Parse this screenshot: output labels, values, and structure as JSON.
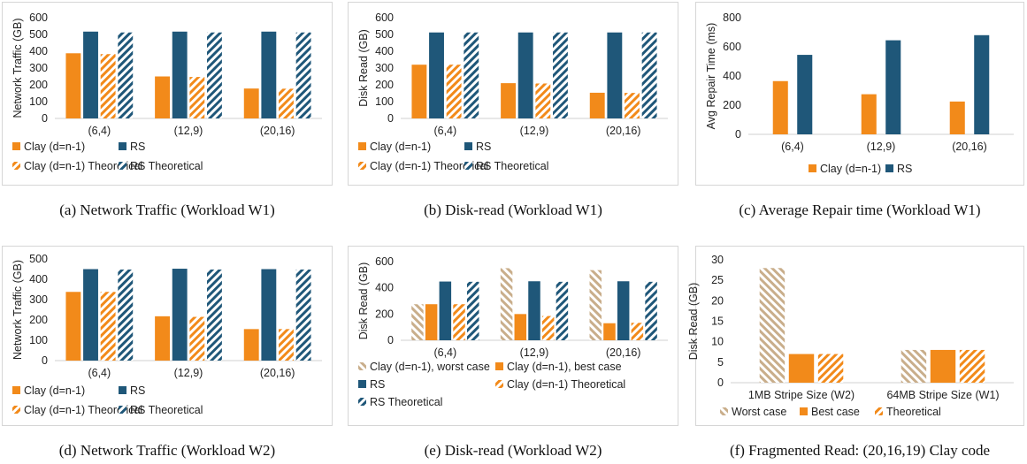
{
  "colors": {
    "clay": "#F28A1A",
    "rs": "#1F5779",
    "worst": "#C9AE8B",
    "axis": "#d0d0d0",
    "border": "#d6d6d6"
  },
  "panels": [
    {
      "caption": "(a)  Network Traffic (Workload W1)",
      "chart_data": {
        "type": "bar",
        "ylabel": "Network Traffic (GB)",
        "ylim": [
          0,
          600
        ],
        "yticks": [
          0,
          100,
          200,
          300,
          400,
          500,
          600
        ],
        "categories": [
          "(6,4)",
          "(12,9)",
          "(20,16)"
        ],
        "legend_columns": 2,
        "series": [
          {
            "name": "Clay (d=n-1)",
            "color": "clay",
            "pattern": "solid",
            "values": [
              388,
              250,
              178
            ]
          },
          {
            "name": "RS",
            "color": "rs",
            "pattern": "solid",
            "values": [
              517,
              517,
              517
            ]
          },
          {
            "name": "Clay (d=n-1) Theoretical",
            "color": "clay",
            "pattern": "hatch",
            "values": [
              383,
              247,
              177
            ]
          },
          {
            "name": "RS Theoretical",
            "color": "rs",
            "pattern": "hatch",
            "values": [
              512,
              512,
              512
            ]
          }
        ]
      }
    },
    {
      "caption": "(b)  Disk-read (Workload W1)",
      "chart_data": {
        "type": "bar",
        "ylabel": "Disk Read (GB)",
        "ylim": [
          0,
          600
        ],
        "yticks": [
          0,
          100,
          200,
          300,
          400,
          500,
          600
        ],
        "categories": [
          "(6,4)",
          "(12,9)",
          "(20,16)"
        ],
        "legend_columns": 2,
        "series": [
          {
            "name": "Clay (d=n-1)",
            "color": "clay",
            "pattern": "solid",
            "values": [
              320,
              210,
              153
            ]
          },
          {
            "name": "RS",
            "color": "rs",
            "pattern": "solid",
            "values": [
              512,
              512,
              512
            ]
          },
          {
            "name": "Clay (d=n-1) Theoretical",
            "color": "clay",
            "pattern": "hatch",
            "values": [
              320,
              208,
              152
            ]
          },
          {
            "name": "RS Theoretical",
            "color": "rs",
            "pattern": "hatch",
            "values": [
              512,
              512,
              512
            ]
          }
        ]
      }
    },
    {
      "caption": "(c)  Average Repair time (Workload W1)",
      "chart_data": {
        "type": "bar",
        "ylabel": "Avg Repair Time (ms)",
        "ylim": [
          0,
          800
        ],
        "yticks": [
          0,
          200,
          400,
          600,
          800
        ],
        "categories": [
          "(6,4)",
          "(12,9)",
          "(20,16)"
        ],
        "legend_columns": 2,
        "series": [
          {
            "name": "Clay (d=n-1)",
            "color": "clay",
            "pattern": "solid",
            "values": [
              365,
              275,
              225
            ]
          },
          {
            "name": "RS",
            "color": "rs",
            "pattern": "solid",
            "values": [
              545,
              645,
              680
            ]
          }
        ]
      }
    },
    {
      "caption": "(d)  Network Traffic (Workload W2)",
      "chart_data": {
        "type": "bar",
        "ylabel": "Network Traffic (GB)",
        "ylim": [
          0,
          500
        ],
        "yticks": [
          0,
          100,
          200,
          300,
          400,
          500
        ],
        "categories": [
          "(6,4)",
          "(12,9)",
          "(20,16)"
        ],
        "legend_columns": 2,
        "series": [
          {
            "name": "Clay (d=n-1)",
            "color": "clay",
            "pattern": "solid",
            "values": [
              338,
              218,
              155
            ]
          },
          {
            "name": "RS",
            "color": "rs",
            "pattern": "solid",
            "values": [
              450,
              452,
              450
            ]
          },
          {
            "name": "Clay (d=n-1) Theoretical",
            "color": "clay",
            "pattern": "hatch",
            "values": [
              338,
              215,
              155
            ]
          },
          {
            "name": "RS Theoretical",
            "color": "rs",
            "pattern": "hatch",
            "values": [
              448,
              448,
              448
            ]
          }
        ]
      }
    },
    {
      "caption": "(e)  Disk-read (Workload W2)",
      "chart_data": {
        "type": "bar",
        "ylabel": "Disk Read (GB)",
        "ylim": [
          0,
          600
        ],
        "yticks": [
          0,
          200,
          400,
          600
        ],
        "categories": [
          "(6,4)",
          "(12,9)",
          "(20,16)"
        ],
        "legend_columns": 2,
        "series": [
          {
            "name": "Clay (d=n-1), worst case",
            "color": "worst",
            "pattern": "dhatch",
            "values": [
              275,
              550,
              535
            ]
          },
          {
            "name": "Clay (d=n-1), best case",
            "color": "clay",
            "pattern": "solid",
            "values": [
              275,
              200,
              130
            ]
          },
          {
            "name": "RS",
            "color": "rs",
            "pattern": "solid",
            "values": [
              448,
              450,
              450
            ]
          },
          {
            "name": "Clay (d=n-1) Theoretical",
            "color": "clay",
            "pattern": "hatch",
            "values": [
              275,
              185,
              133
            ]
          },
          {
            "name": "RS Theoretical",
            "color": "rs",
            "pattern": "hatch",
            "values": [
              446,
              446,
              446
            ]
          }
        ]
      }
    },
    {
      "caption": "(f)  Fragmented Read: (20,16,19) Clay code",
      "chart_data": {
        "type": "bar",
        "ylabel": "Disk Read (GB)",
        "ylim": [
          0,
          30
        ],
        "yticks": [
          0,
          5,
          10,
          15,
          20,
          25,
          30
        ],
        "categories": [
          "1MB Stripe Size (W2)",
          "64MB Stripe Size (W1)"
        ],
        "legend_columns": 3,
        "series": [
          {
            "name": "Worst case",
            "color": "worst",
            "pattern": "dhatch",
            "values": [
              28,
              8
            ]
          },
          {
            "name": "Best case",
            "color": "clay",
            "pattern": "solid",
            "values": [
              7,
              8
            ]
          },
          {
            "name": "Theoretical",
            "color": "clay",
            "pattern": "hatch",
            "values": [
              7,
              8
            ]
          }
        ]
      }
    }
  ]
}
